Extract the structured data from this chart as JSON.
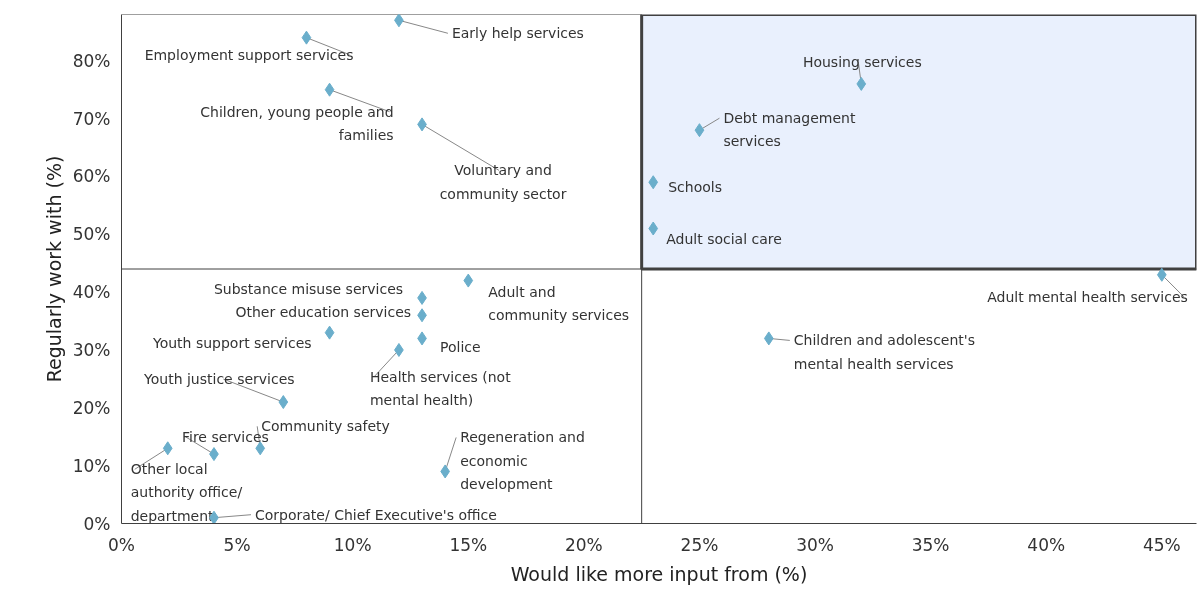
{
  "chart_data": {
    "type": "scatter",
    "xlabel": "Would like more input from (%)",
    "ylabel": "Regularly work with (%)",
    "series": [
      {
        "color": "#6aaecb",
        "x": [
          12,
          8,
          9,
          13,
          32,
          25,
          23,
          23,
          45,
          13,
          15,
          13,
          13,
          9,
          12,
          28,
          7,
          6,
          4,
          2,
          14,
          4
        ],
        "values": [
          87,
          84,
          75,
          69,
          76,
          68,
          59,
          51,
          43,
          39,
          42,
          36,
          32,
          33,
          30,
          32,
          21,
          13,
          12,
          13,
          9,
          1
        ]
      }
    ],
    "marker": "diamond",
    "grid": false,
    "xlim": [
      0,
      46.5
    ],
    "ylim": [
      0,
      88
    ],
    "xticks": [
      {
        "value": 0,
        "label": "0%"
      },
      {
        "value": 5,
        "label": "5%"
      },
      {
        "value": 10,
        "label": "10%"
      },
      {
        "value": 15,
        "label": "15%"
      },
      {
        "value": 20,
        "label": "20%"
      },
      {
        "value": 25,
        "label": "25%"
      },
      {
        "value": 30,
        "label": "30%"
      },
      {
        "value": 35,
        "label": "35%"
      },
      {
        "value": 40,
        "label": "40%"
      },
      {
        "value": 45,
        "label": "45%"
      }
    ],
    "yticks": [
      {
        "value": 0,
        "label": "0%"
      },
      {
        "value": 10,
        "label": "10%"
      },
      {
        "value": 20,
        "label": "20%"
      },
      {
        "value": 30,
        "label": "30%"
      },
      {
        "value": 40,
        "label": "40%"
      },
      {
        "value": 50,
        "label": "50%"
      },
      {
        "value": 60,
        "label": "60%"
      },
      {
        "value": 70,
        "label": "70%"
      },
      {
        "value": 80,
        "label": "80%"
      }
    ],
    "ref_lines": [
      {
        "axis": "x",
        "value": 22.5,
        "color": "#404040"
      },
      {
        "axis": "y",
        "value": 44,
        "color": "#404040"
      }
    ],
    "bands": [
      {
        "axis": "y",
        "from": 44,
        "to": 88,
        "color": "#e9f0fd"
      }
    ],
    "annotations": [
      {
        "text": "Early help services",
        "x": 12,
        "y": 87
      },
      {
        "text": "Employment support services",
        "x": 8,
        "y": 84
      },
      {
        "text": "Children, young people and families",
        "x": 9,
        "y": 75
      },
      {
        "text": "Voluntary and community sector",
        "x": 13,
        "y": 69
      },
      {
        "text": "Housing services",
        "x": 32,
        "y": 76
      },
      {
        "text": "Debt management services",
        "x": 25,
        "y": 68
      },
      {
        "text": "Schools",
        "x": 23,
        "y": 59
      },
      {
        "text": "Adult social care",
        "x": 23,
        "y": 51
      },
      {
        "text": "Adult mental health services",
        "x": 45,
        "y": 43
      },
      {
        "text": "Substance misuse services",
        "x": 13,
        "y": 39
      },
      {
        "text": "Adult and community services",
        "x": 15,
        "y": 42
      },
      {
        "text": "Other education services",
        "x": 13,
        "y": 36
      },
      {
        "text": "Police",
        "x": 13,
        "y": 32
      },
      {
        "text": "Youth support services",
        "x": 9,
        "y": 33
      },
      {
        "text": "Health services (not mental health)",
        "x": 12,
        "y": 30
      },
      {
        "text": "Children and adolescent's mental health services",
        "x": 28,
        "y": 32
      },
      {
        "text": "Youth justice services",
        "x": 7,
        "y": 21
      },
      {
        "text": "Community safety",
        "x": 6,
        "y": 13
      },
      {
        "text": "Fire services",
        "x": 4,
        "y": 12
      },
      {
        "text": "Other local authority office/ department",
        "x": 2,
        "y": 13
      },
      {
        "text": "Regeneration and economic development",
        "x": 14,
        "y": 9
      },
      {
        "text": "Corporate/ Chief Executive's office",
        "x": 4,
        "y": 1
      }
    ]
  }
}
